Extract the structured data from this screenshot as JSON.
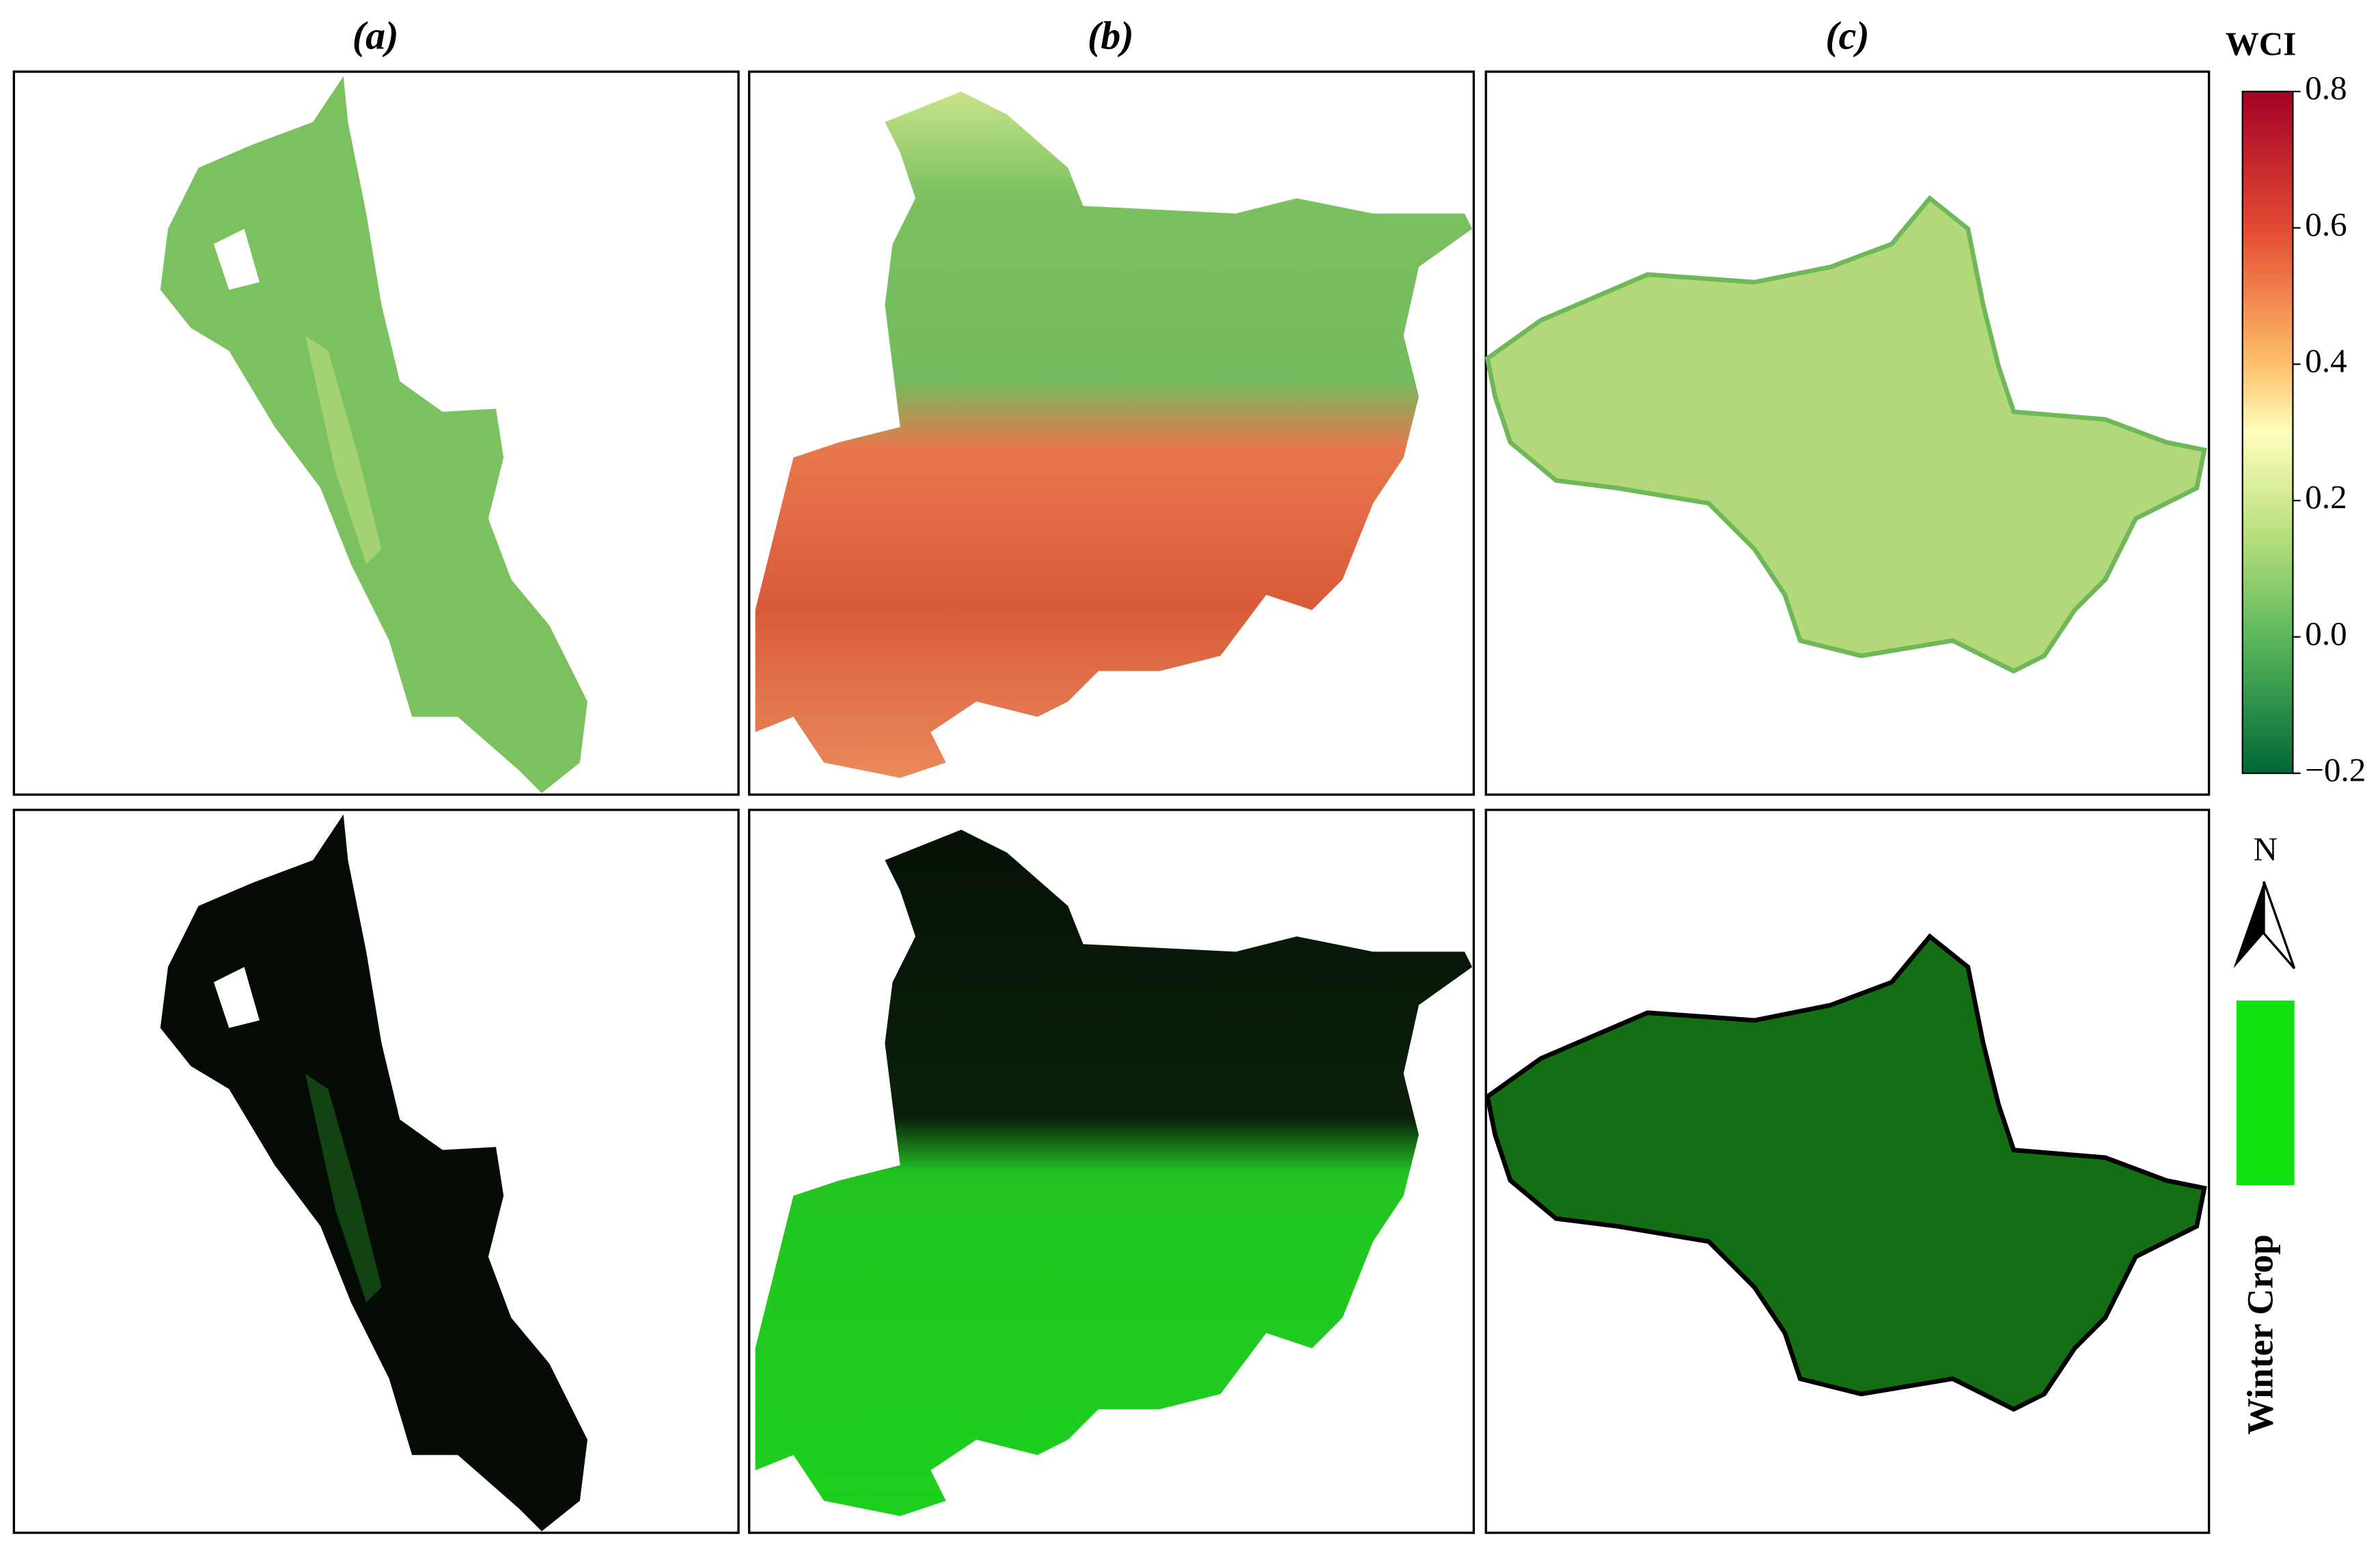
{
  "panels": [
    {
      "label": "(a)"
    },
    {
      "label": "(b)"
    },
    {
      "label": "(c)"
    }
  ],
  "colorbar": {
    "title": "WCI",
    "lim": [
      -0.2,
      0.8
    ],
    "ticks": [
      0.8,
      0.6,
      0.4,
      0.2,
      {
        "value": 0,
        "label": "0.0"
      },
      {
        "value": -0.2,
        "label": "−0.2"
      }
    ]
  },
  "north": "N",
  "legend": {
    "label": "Winter Crop",
    "color": "#11e011"
  }
}
